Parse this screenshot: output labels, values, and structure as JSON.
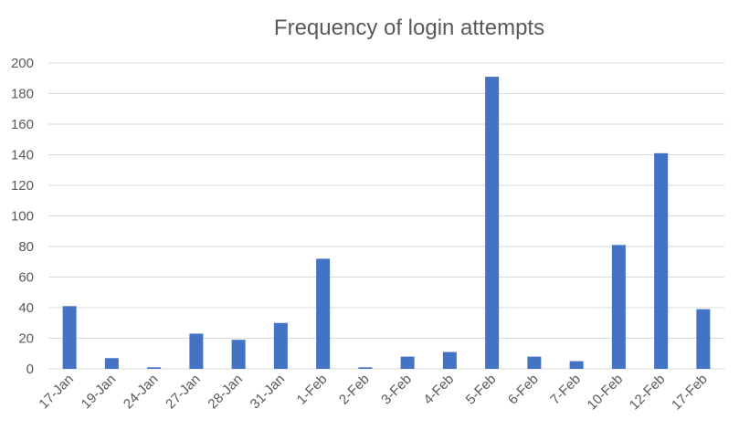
{
  "chart_data": {
    "type": "bar",
    "title": "Frequency of login attempts",
    "xlabel": "",
    "ylabel": "",
    "categories": [
      "17-Jan",
      "19-Jan",
      "24-Jan",
      "27-Jan",
      "28-Jan",
      "31-Jan",
      "1-Feb",
      "2-Feb",
      "3-Feb",
      "4-Feb",
      "5-Feb",
      "6-Feb",
      "7-Feb",
      "10-Feb",
      "12-Feb",
      "17-Feb"
    ],
    "values": [
      41,
      7,
      1,
      23,
      19,
      30,
      72,
      1,
      8,
      11,
      191,
      8,
      5,
      81,
      141,
      39
    ],
    "ylim": [
      0,
      200
    ],
    "yticks": [
      "0",
      "20",
      "40",
      "60",
      "80",
      "100",
      "120",
      "140",
      "160",
      "180",
      "200"
    ],
    "grid": true,
    "legend": "none",
    "colors": {
      "bar": "#4472C4",
      "gridline": "#D9D9D9",
      "text": "#595959"
    }
  }
}
